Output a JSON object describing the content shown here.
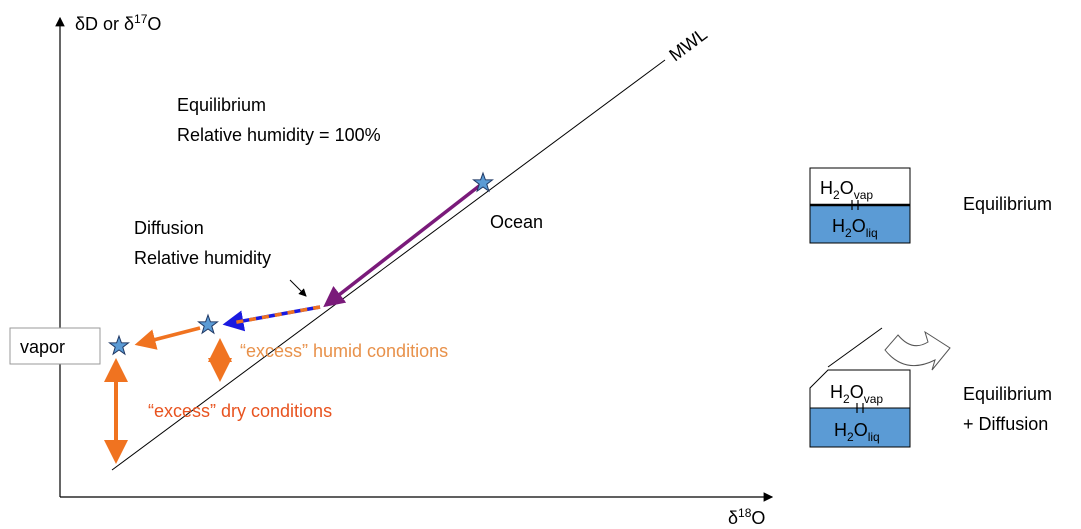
{
  "axes": {
    "y_label": {
      "pre": "δD or δ",
      "sup": "17",
      "post": "O"
    },
    "x_label": {
      "pre": "δ",
      "sup": "18",
      "post": "O"
    }
  },
  "line_label": "MWL",
  "annotations": {
    "equilibrium": [
      "Equilibrium",
      "Relative humidity = 100%"
    ],
    "diffusion": [
      "Diffusion",
      "Relative humidity"
    ],
    "ocean": "Ocean",
    "vapor": "vapor",
    "humid": "“excess” humid conditions",
    "dry": "“excess” dry conditions"
  },
  "boxes": [
    {
      "vapor": {
        "h": "H",
        "n": "2",
        "o": "O",
        "phase": "vap"
      },
      "liquid": {
        "h": "H",
        "n": "2",
        "o": "O",
        "phase": "liq"
      },
      "label": [
        "Equilibrium"
      ]
    },
    {
      "vapor": {
        "h": "H",
        "n": "2",
        "o": "O",
        "phase": "vap"
      },
      "liquid": {
        "h": "H",
        "n": "2",
        "o": "O",
        "phase": "liq"
      },
      "label": [
        "Equilibrium",
        "+ Diffusion"
      ]
    }
  ]
}
